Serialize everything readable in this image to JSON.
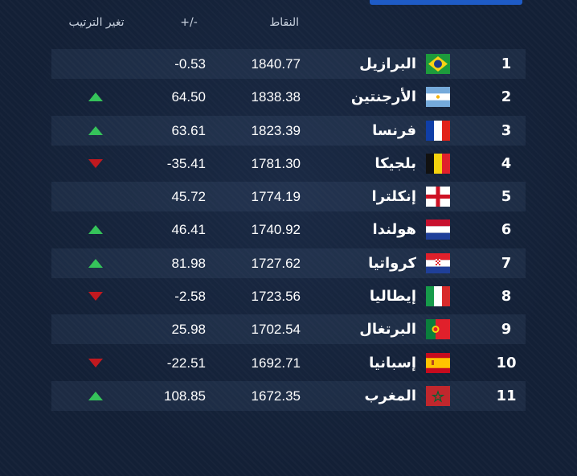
{
  "header": {
    "rank_change": "تغير الترتيب",
    "diff": "+/-",
    "points": "النقاط"
  },
  "colors": {
    "up": "#35c35a",
    "down": "#c1191f",
    "background": "#132036"
  },
  "rows": [
    {
      "rank": "1",
      "name": "البرازيل",
      "flag": "brazil-flag-icon",
      "points": "1840.77",
      "diff": "-0.53",
      "trend": "none"
    },
    {
      "rank": "2",
      "name": "الأرجنتين",
      "flag": "argentina-flag-icon",
      "points": "1838.38",
      "diff": "64.50",
      "trend": "up"
    },
    {
      "rank": "3",
      "name": "فرنسا",
      "flag": "france-flag-icon",
      "points": "1823.39",
      "diff": "63.61",
      "trend": "up"
    },
    {
      "rank": "4",
      "name": "بلجيكا",
      "flag": "belgium-flag-icon",
      "points": "1781.30",
      "diff": "-35.41",
      "trend": "down"
    },
    {
      "rank": "5",
      "name": "إنكلترا",
      "flag": "england-flag-icon",
      "points": "1774.19",
      "diff": "45.72",
      "trend": "none"
    },
    {
      "rank": "6",
      "name": "هولندا",
      "flag": "netherlands-flag-icon",
      "points": "1740.92",
      "diff": "46.41",
      "trend": "up"
    },
    {
      "rank": "7",
      "name": "كرواتيا",
      "flag": "croatia-flag-icon",
      "points": "1727.62",
      "diff": "81.98",
      "trend": "up"
    },
    {
      "rank": "8",
      "name": "إيطاليا",
      "flag": "italy-flag-icon",
      "points": "1723.56",
      "diff": "-2.58",
      "trend": "down"
    },
    {
      "rank": "9",
      "name": "البرتغال",
      "flag": "portugal-flag-icon",
      "points": "1702.54",
      "diff": "25.98",
      "trend": "none"
    },
    {
      "rank": "10",
      "name": "إسبانيا",
      "flag": "spain-flag-icon",
      "points": "1692.71",
      "diff": "-22.51",
      "trend": "down"
    },
    {
      "rank": "11",
      "name": "المغرب",
      "flag": "morocco-flag-icon",
      "points": "1672.35",
      "diff": "108.85",
      "trend": "up"
    }
  ]
}
